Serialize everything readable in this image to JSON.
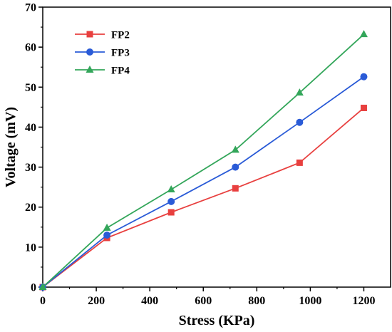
{
  "chart_data": {
    "type": "line",
    "title": "",
    "xlabel": "Stress (KPa)",
    "ylabel": "Voltage (mV)",
    "xlim": [
      0,
      1300
    ],
    "ylim": [
      0,
      70
    ],
    "xticks": [
      0,
      200,
      400,
      600,
      800,
      1000,
      1200
    ],
    "yticks": [
      0,
      10,
      20,
      30,
      40,
      50,
      60,
      70
    ],
    "grid": false,
    "legend_position": "top-left",
    "x": [
      0,
      240,
      480,
      720,
      960,
      1200
    ],
    "series": [
      {
        "name": "FP2",
        "marker": "square",
        "color": "#e8403f",
        "values": [
          0,
          12.3,
          18.7,
          24.7,
          31.1,
          44.8
        ]
      },
      {
        "name": "FP3",
        "marker": "circle",
        "color": "#2a5bd7",
        "values": [
          0,
          13.0,
          21.4,
          30.0,
          41.2,
          52.6
        ]
      },
      {
        "name": "FP4",
        "marker": "triangle",
        "color": "#33a65a",
        "values": [
          0,
          14.8,
          24.4,
          34.3,
          48.6,
          63.2
        ]
      }
    ]
  }
}
